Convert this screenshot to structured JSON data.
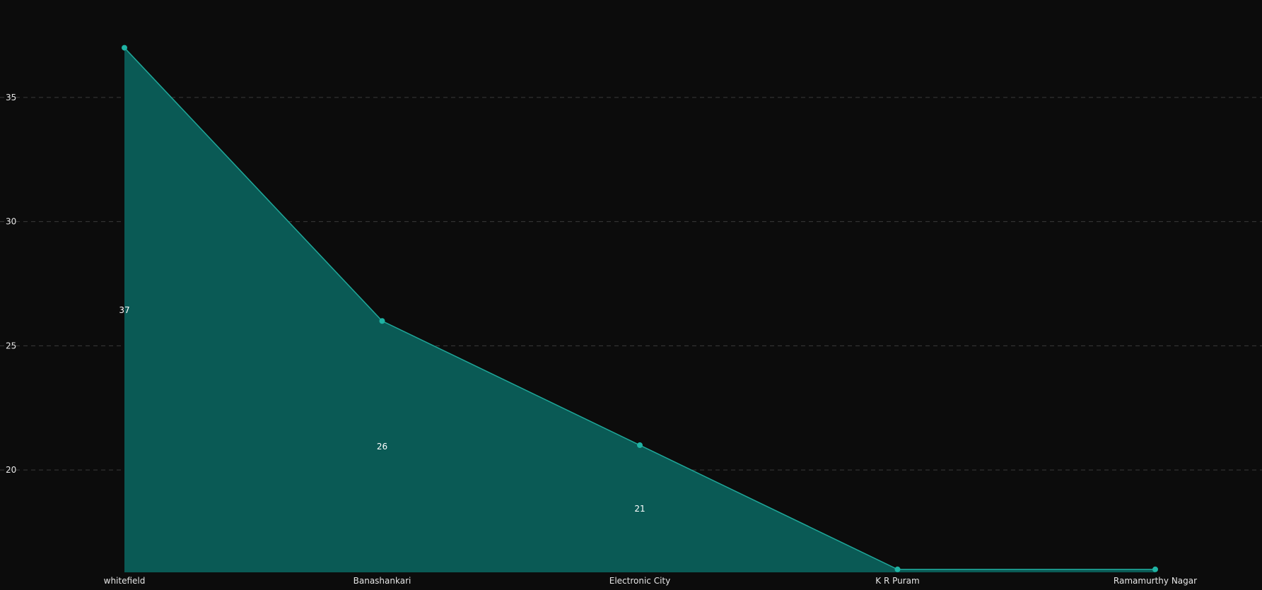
{
  "chart_data": {
    "type": "area",
    "categories": [
      "whitefield",
      "Banashankari",
      "Electronic City",
      "K R Puram",
      "Ramamurthy Nagar"
    ],
    "series": [
      {
        "values": [
          37,
          26,
          21,
          16,
          16
        ]
      }
    ],
    "data_labels": [
      "37",
      "26",
      "21",
      "",
      ""
    ],
    "y_ticks": [
      20,
      25,
      30,
      35
    ],
    "ylim": [
      15.88,
      37.5
    ],
    "grid": true,
    "title": "",
    "xlabel": "",
    "ylabel": "",
    "colors": {
      "background": "#0c0c0c",
      "line": "#1fa89a",
      "fill": "#0a5a55",
      "marker": "#1fb3a4",
      "grid": "#3a3a3a",
      "text": "#e6e6e6"
    }
  }
}
